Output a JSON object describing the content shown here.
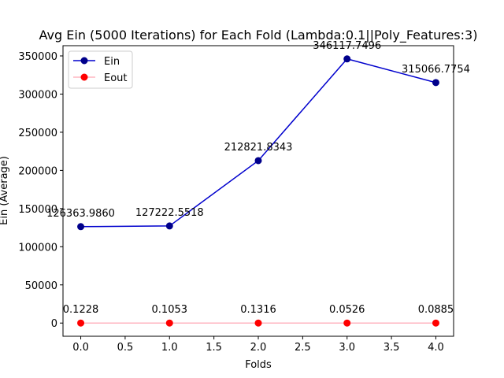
{
  "chart_data": {
    "type": "line",
    "title": "Avg Ein (5000 Iterations) for Each Fold (Lambda:0.1||Poly_Features:3)",
    "xlabel": "Folds",
    "ylabel": "Ein (Average)",
    "x": [
      0,
      1,
      2,
      3,
      4
    ],
    "xlim": [
      -0.2,
      4.2
    ],
    "ylim": [
      -17306,
      363424
    ],
    "xticks": [
      0.0,
      0.5,
      1.0,
      1.5,
      2.0,
      2.5,
      3.0,
      3.5,
      4.0
    ],
    "xtick_labels": [
      "0.0",
      "0.5",
      "1.0",
      "1.5",
      "2.0",
      "2.5",
      "3.0",
      "3.5",
      "4.0"
    ],
    "yticks": [
      0,
      50000,
      100000,
      150000,
      200000,
      250000,
      300000,
      350000
    ],
    "ytick_labels": [
      "0",
      "50000",
      "100000",
      "150000",
      "200000",
      "250000",
      "300000",
      "350000"
    ],
    "grid": false,
    "legend_position": "top-left",
    "series": [
      {
        "name": "Ein",
        "values": [
          126363.986,
          127222.5518,
          212821.8343,
          346117.7496,
          315066.7754
        ],
        "labels": [
          "126363.9860",
          "127222.5518",
          "212821.8343",
          "346117.7496",
          "315066.7754"
        ],
        "line_color": "#0000cd",
        "marker_face": "#00008b",
        "marker_edge": "#00008b"
      },
      {
        "name": "Eout",
        "values": [
          0.1228,
          0.1053,
          0.1316,
          0.0526,
          0.0885
        ],
        "labels": [
          "0.1228",
          "0.1053",
          "0.1316",
          "0.0526",
          "0.0885"
        ],
        "line_color": "#ffb6c1",
        "marker_face": "#ff0000",
        "marker_edge": "#ff0000"
      }
    ]
  }
}
